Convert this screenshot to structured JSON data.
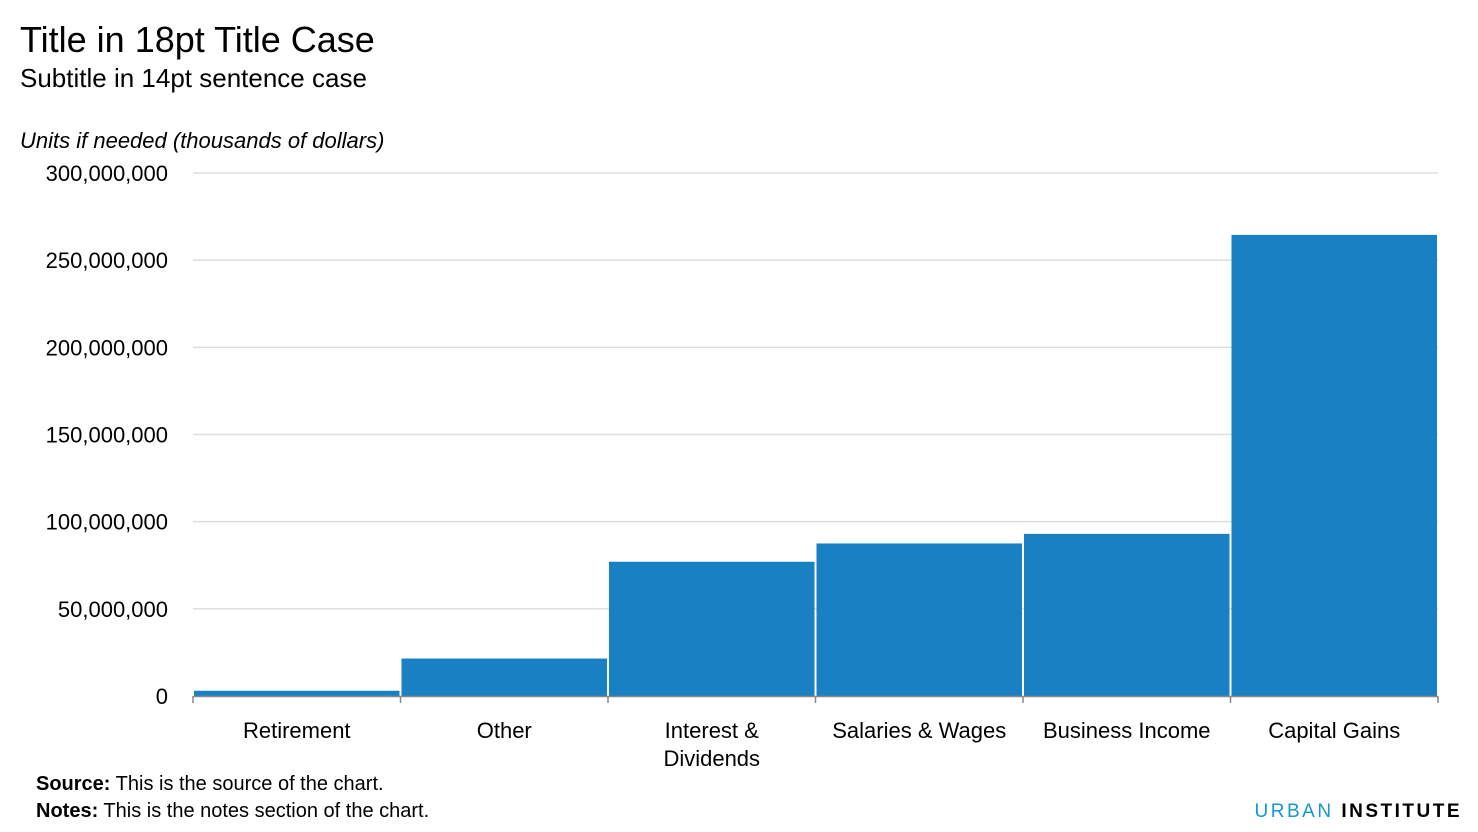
{
  "header": {
    "title": "Title in 18pt Title Case",
    "subtitle": "Subtitle in 14pt sentence case",
    "units": "Units if needed (thousands of dollars)"
  },
  "footer": {
    "source_label": "Source:",
    "source_text": " This is the source of the chart.",
    "notes_label": "Notes:",
    "notes_text": " This is the notes section of the chart.",
    "brand_first": "URBAN",
    "brand_second": "INSTITUTE"
  },
  "colors": {
    "bar": "#1a80c4",
    "gridline": "#dedddd",
    "axis": "#888888",
    "brand_accent": "#1696d2"
  },
  "chart_data": {
    "type": "bar",
    "categories": [
      [
        "Retirement"
      ],
      [
        "Other"
      ],
      [
        "Interest &",
        "Dividends"
      ],
      [
        "Salaries & Wages"
      ],
      [
        "Business Income"
      ],
      [
        "Capital Gains"
      ]
    ],
    "values": [
      3000000,
      21500000,
      77000000,
      87500000,
      93000000,
      264500000
    ],
    "ylim": [
      0,
      300000000
    ],
    "yticks": [
      "0",
      "50,000,000",
      "100,000,000",
      "150,000,000",
      "200,000,000",
      "250,000,000",
      "300,000,000"
    ],
    "ytick_values": [
      0,
      50000000,
      100000000,
      150000000,
      200000000,
      250000000,
      300000000
    ],
    "grid": true,
    "legend": "none"
  }
}
